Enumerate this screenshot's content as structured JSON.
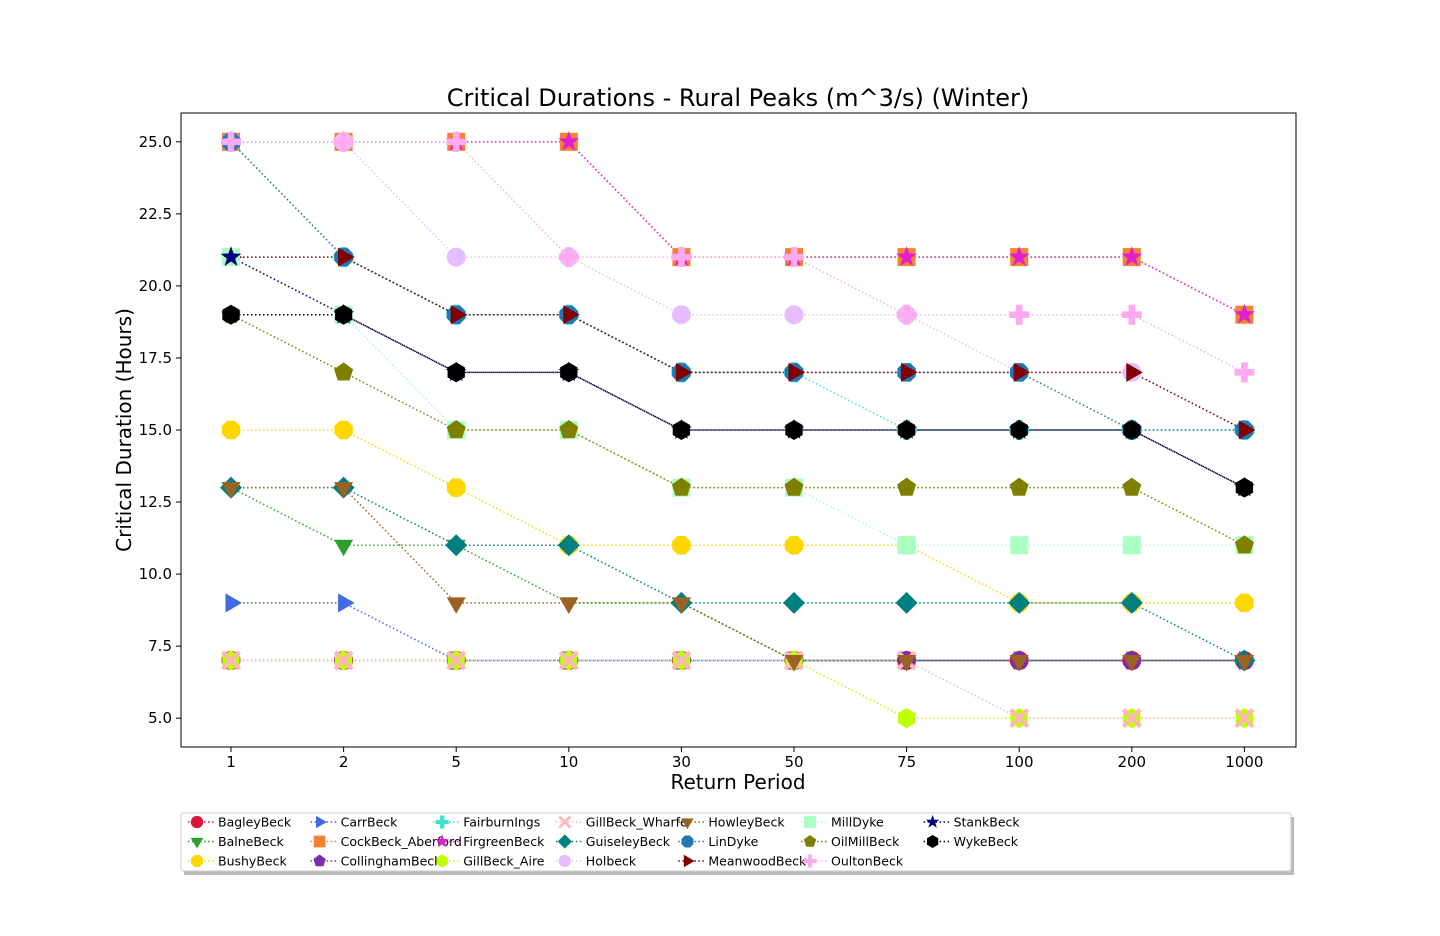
{
  "chart_data": {
    "type": "line",
    "title": "Critical Durations - Rural Peaks (m^3/s) (Winter)",
    "xlabel": "Return Period",
    "ylabel": "Critical Duration (Hours)",
    "x_scale": "categorical",
    "categories": [
      "1",
      "2",
      "5",
      "10",
      "30",
      "50",
      "75",
      "100",
      "200",
      "1000"
    ],
    "ylim": [
      4.0,
      26.0
    ],
    "yticks": [
      "5.0",
      "7.5",
      "10.0",
      "12.5",
      "15.0",
      "17.5",
      "20.0",
      "22.5",
      "25.0"
    ],
    "grid": false,
    "legend_placement": "below plot, 9 columns",
    "series": [
      {
        "name": "BagleyBeck",
        "color": "#dc143c",
        "marker": "circle",
        "values": [
          7,
          7,
          7,
          7,
          7,
          7,
          7,
          7,
          7,
          7
        ]
      },
      {
        "name": "BalneBeck",
        "color": "#2ca02c",
        "marker": "triangle-down",
        "values": [
          13,
          11,
          11,
          9,
          9,
          7,
          7,
          7,
          7,
          7
        ]
      },
      {
        "name": "BushyBeck",
        "color": "#ffd700",
        "marker": "octagon",
        "values": [
          15,
          15,
          13,
          11,
          11,
          11,
          11,
          9,
          9,
          9
        ]
      },
      {
        "name": "CarrBeck",
        "color": "#4169e1",
        "marker": "triangle-right",
        "values": [
          9,
          9,
          7,
          7,
          7,
          7,
          7,
          7,
          7,
          7
        ]
      },
      {
        "name": "CockBeck_Aberford",
        "color": "#f58231",
        "marker": "square",
        "values": [
          25,
          25,
          25,
          25,
          21,
          21,
          21,
          21,
          21,
          19
        ]
      },
      {
        "name": "CollinghamBeck",
        "color": "#7b2bab",
        "marker": "pentagon",
        "values": [
          7,
          7,
          7,
          7,
          7,
          7,
          7,
          7,
          7,
          7
        ]
      },
      {
        "name": "FairburnIngs",
        "color": "#40e0d0",
        "marker": "plus",
        "values": [
          25,
          21,
          19,
          19,
          17,
          17,
          15,
          15,
          15,
          15
        ]
      },
      {
        "name": "FirgreenBeck",
        "color": "#e020d0",
        "marker": "star",
        "values": [
          25,
          25,
          25,
          25,
          21,
          21,
          21,
          21,
          21,
          19
        ]
      },
      {
        "name": "GillBeck_Aire",
        "color": "#bfff00",
        "marker": "hexagon",
        "values": [
          7,
          7,
          7,
          7,
          7,
          7,
          5,
          5,
          5,
          5
        ]
      },
      {
        "name": "GillBeck_Wharfe",
        "color": "#ffb6b9",
        "marker": "x",
        "values": [
          7,
          7,
          7,
          7,
          7,
          7,
          7,
          5,
          5,
          5
        ]
      },
      {
        "name": "GuiseleyBeck",
        "color": "#008080",
        "marker": "diamond",
        "values": [
          13,
          13,
          11,
          11,
          9,
          9,
          9,
          9,
          9,
          7
        ]
      },
      {
        "name": "Holbeck",
        "color": "#e6beff",
        "marker": "circle",
        "values": [
          25,
          25,
          21,
          21,
          19,
          19,
          19,
          17,
          17,
          15
        ]
      },
      {
        "name": "HowleyBeck",
        "color": "#9a6324",
        "marker": "triangle-down",
        "values": [
          13,
          13,
          9,
          9,
          9,
          7,
          7,
          7,
          7,
          7
        ]
      },
      {
        "name": "LinDyke",
        "color": "#1f77b4",
        "marker": "octagon",
        "values": [
          25,
          21,
          19,
          19,
          17,
          17,
          17,
          17,
          15,
          15
        ]
      },
      {
        "name": "MeanwoodBeck",
        "color": "#800000",
        "marker": "triangle-right",
        "values": [
          21,
          21,
          19,
          19,
          17,
          17,
          17,
          17,
          17,
          15
        ]
      },
      {
        "name": "MillDyke",
        "color": "#aaffc3",
        "marker": "square",
        "values": [
          21,
          19,
          15,
          15,
          13,
          13,
          11,
          11,
          11,
          11
        ]
      },
      {
        "name": "OilMillBeck",
        "color": "#808000",
        "marker": "pentagon",
        "values": [
          19,
          17,
          15,
          15,
          13,
          13,
          13,
          13,
          13,
          11
        ]
      },
      {
        "name": "OultonBeck",
        "color": "#ffaaf0",
        "marker": "plus",
        "values": [
          25,
          25,
          25,
          21,
          21,
          21,
          19,
          19,
          19,
          17
        ]
      },
      {
        "name": "StankBeck",
        "color": "#000080",
        "marker": "star",
        "values": [
          21,
          19,
          17,
          17,
          15,
          15,
          15,
          15,
          15,
          13
        ]
      },
      {
        "name": "WykeBeck",
        "color": "#000000",
        "marker": "hexagon",
        "values": [
          19,
          19,
          17,
          17,
          15,
          15,
          15,
          15,
          15,
          13
        ]
      }
    ]
  }
}
